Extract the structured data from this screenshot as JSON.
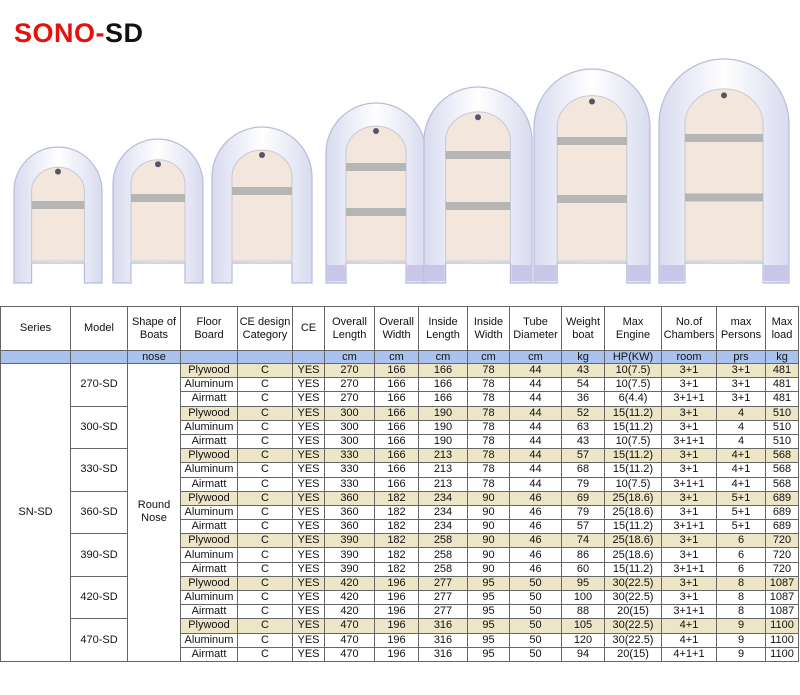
{
  "title": {
    "brand": "SONO-",
    "model": "SD"
  },
  "table": {
    "headers": [
      "Series",
      "Model",
      "Shape of Boats",
      "Floor Board",
      "CE design Category",
      "CE",
      "Overall Length",
      "Overall Width",
      "Inside Length",
      "Inside Width",
      "Tube Diameter",
      "Weight boat",
      "Max Engine",
      "No.of Chambers",
      "max Persons",
      "Max load"
    ],
    "units": {
      "shape": "nose",
      "values": [
        "cm",
        "cm",
        "cm",
        "cm",
        "cm",
        "kg",
        "HP(KW)",
        "room",
        "prs",
        "kg"
      ]
    },
    "series": "SN-SD",
    "shape": "Round Nose",
    "models": [
      {
        "name": "270-SD",
        "rows": [
          [
            "Plywood",
            "C",
            "YES",
            "270",
            "166",
            "166",
            "78",
            "44",
            "43",
            "10(7.5)",
            "3+1",
            "3+1",
            "481"
          ],
          [
            "Aluminum",
            "C",
            "YES",
            "270",
            "166",
            "166",
            "78",
            "44",
            "54",
            "10(7.5)",
            "3+1",
            "3+1",
            "481"
          ],
          [
            "Airmatt",
            "C",
            "YES",
            "270",
            "166",
            "166",
            "78",
            "44",
            "36",
            "6(4.4)",
            "3+1+1",
            "3+1",
            "481"
          ]
        ]
      },
      {
        "name": "300-SD",
        "rows": [
          [
            "Plywood",
            "C",
            "YES",
            "300",
            "166",
            "190",
            "78",
            "44",
            "52",
            "15(11.2)",
            "3+1",
            "4",
            "510"
          ],
          [
            "Aluminum",
            "C",
            "YES",
            "300",
            "166",
            "190",
            "78",
            "44",
            "63",
            "15(11.2)",
            "3+1",
            "4",
            "510"
          ],
          [
            "Airmatt",
            "C",
            "YES",
            "300",
            "166",
            "190",
            "78",
            "44",
            "43",
            "10(7.5)",
            "3+1+1",
            "4",
            "510"
          ]
        ]
      },
      {
        "name": "330-SD",
        "rows": [
          [
            "Plywood",
            "C",
            "YES",
            "330",
            "166",
            "213",
            "78",
            "44",
            "57",
            "15(11.2)",
            "3+1",
            "4+1",
            "568"
          ],
          [
            "Aluminum",
            "C",
            "YES",
            "330",
            "166",
            "213",
            "78",
            "44",
            "68",
            "15(11.2)",
            "3+1",
            "4+1",
            "568"
          ],
          [
            "Airmatt",
            "C",
            "YES",
            "330",
            "166",
            "213",
            "78",
            "44",
            "79",
            "10(7.5)",
            "3+1+1",
            "4+1",
            "568"
          ]
        ]
      },
      {
        "name": "360-SD",
        "rows": [
          [
            "Plywood",
            "C",
            "YES",
            "360",
            "182",
            "234",
            "90",
            "46",
            "69",
            "25(18.6)",
            "3+1",
            "5+1",
            "689"
          ],
          [
            "Aluminum",
            "C",
            "YES",
            "360",
            "182",
            "234",
            "90",
            "46",
            "79",
            "25(18.6)",
            "3+1",
            "5+1",
            "689"
          ],
          [
            "Airmatt",
            "C",
            "YES",
            "360",
            "182",
            "234",
            "90",
            "46",
            "57",
            "15(11.2)",
            "3+1+1",
            "5+1",
            "689"
          ]
        ]
      },
      {
        "name": "390-SD",
        "rows": [
          [
            "Plywood",
            "C",
            "YES",
            "390",
            "182",
            "258",
            "90",
            "46",
            "74",
            "25(18.6)",
            "3+1",
            "6",
            "720"
          ],
          [
            "Aluminum",
            "C",
            "YES",
            "390",
            "182",
            "258",
            "90",
            "46",
            "86",
            "25(18.6)",
            "3+1",
            "6",
            "720"
          ],
          [
            "Airmatt",
            "C",
            "YES",
            "390",
            "182",
            "258",
            "90",
            "46",
            "60",
            "15(11.2)",
            "3+1+1",
            "6",
            "720"
          ]
        ]
      },
      {
        "name": "420-SD",
        "rows": [
          [
            "Plywood",
            "C",
            "YES",
            "420",
            "196",
            "277",
            "95",
            "50",
            "95",
            "30(22.5)",
            "3+1",
            "8",
            "1087"
          ],
          [
            "Aluminum",
            "C",
            "YES",
            "420",
            "196",
            "277",
            "95",
            "50",
            "100",
            "30(22.5)",
            "3+1",
            "8",
            "1087"
          ],
          [
            "Airmatt",
            "C",
            "YES",
            "420",
            "196",
            "277",
            "95",
            "50",
            "88",
            "20(15)",
            "3+1+1",
            "8",
            "1087"
          ]
        ]
      },
      {
        "name": "470-SD",
        "rows": [
          [
            "Plywood",
            "C",
            "YES",
            "470",
            "196",
            "316",
            "95",
            "50",
            "105",
            "30(22.5)",
            "4+1",
            "9",
            "1100"
          ],
          [
            "Aluminum",
            "C",
            "YES",
            "470",
            "196",
            "316",
            "95",
            "50",
            "120",
            "30(22.5)",
            "4+1",
            "9",
            "1100"
          ],
          [
            "Airmatt",
            "C",
            "YES",
            "470",
            "196",
            "316",
            "95",
            "50",
            "94",
            "20(15)",
            "4+1+1",
            "9",
            "1100"
          ]
        ]
      }
    ]
  }
}
